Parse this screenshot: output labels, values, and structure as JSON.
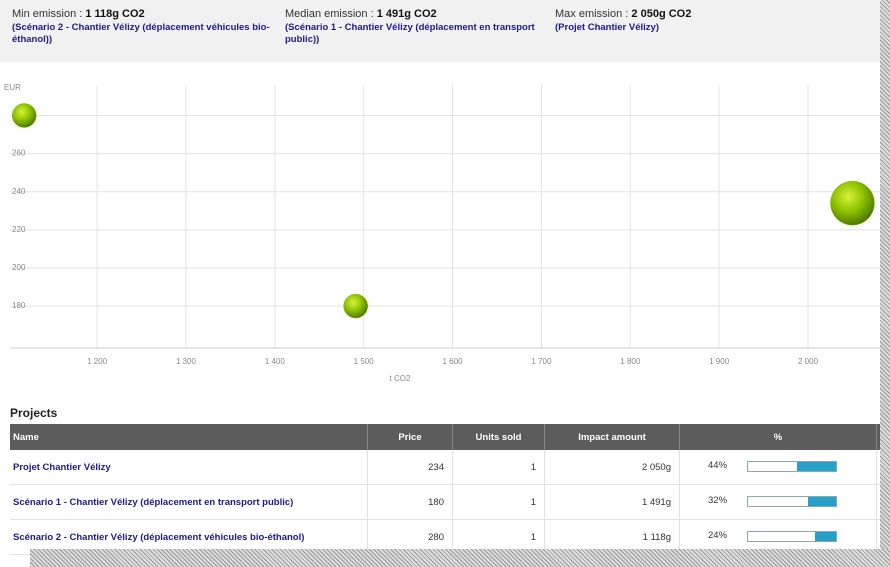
{
  "header": {
    "stats": [
      {
        "label": "Min emission :",
        "value": "1 118g CO2",
        "project": "(Scénario 2 - Chantier Vélizy (déplacement véhicules bio-éthanol))"
      },
      {
        "label": "Median emission :",
        "value": "1 491g CO2",
        "project": "(Scénario 1 - Chantier Vélizy (déplacement en transport public))"
      },
      {
        "label": "Max emission :",
        "value": "2 050g CO2",
        "project": "(Projet Chantier Vélizy)"
      }
    ]
  },
  "chart_data": {
    "type": "scatter",
    "x_label": "t CO2",
    "y_label": "EUR",
    "series": [
      {
        "color": "#7fb800",
        "x": [
          2050,
          1491,
          1118
        ],
        "values": [
          234,
          180,
          280
        ]
      }
    ],
    "xlim": [
      1102,
      2081
    ],
    "ylim": [
      158,
      296
    ],
    "xticks": [
      {
        "value": 1200,
        "label": "1 200"
      },
      {
        "value": 1300,
        "label": "1 300"
      },
      {
        "value": 1400,
        "label": "1 400"
      },
      {
        "value": 1500,
        "label": "1 500"
      },
      {
        "value": 1600,
        "label": "1 600"
      },
      {
        "value": 1700,
        "label": "1 700"
      },
      {
        "value": 1800,
        "label": "1 800"
      },
      {
        "value": 1900,
        "label": "1 900"
      },
      {
        "value": 2000,
        "label": "2 000"
      }
    ],
    "yticks": [
      180,
      200,
      220,
      240,
      260,
      280
    ],
    "grid": true
  },
  "table": {
    "title": "Projects",
    "columns": [
      "Name",
      "Price",
      "Units sold",
      "Impact amount",
      "%"
    ],
    "rows": [
      {
        "name": "Projet Chantier Vélizy",
        "price": 234,
        "units": 1,
        "impact": "2 050g",
        "percent": {
          "value": 44,
          "label": "44%"
        }
      },
      {
        "name": "Scénario 1 - Chantier Vélizy (déplacement en transport public)",
        "price": 180,
        "units": 1,
        "impact": "1 491g",
        "percent": {
          "value": 32,
          "label": "32%"
        }
      },
      {
        "name": "Scénario 2 - Chantier Vélizy (déplacement véhicules bio-éthanol)",
        "price": 280,
        "units": 1,
        "impact": "1 118g",
        "percent": {
          "value": 24,
          "label": "24%"
        }
      }
    ]
  }
}
